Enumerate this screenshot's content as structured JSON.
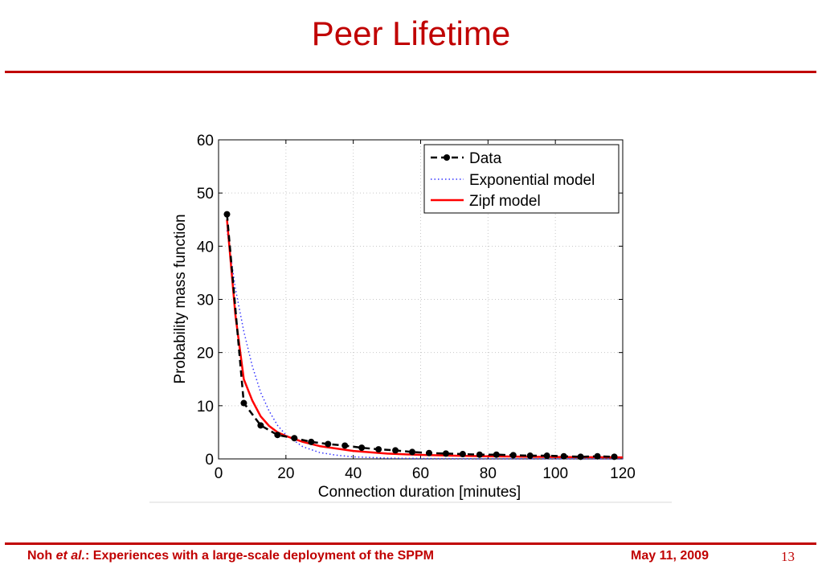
{
  "slide": {
    "title": "Peer Lifetime",
    "footer_author": "Noh",
    "footer_etal": "et al.",
    "footer_rest": ": Experiences with a large-scale deployment of the SPPM",
    "footer_date": "May 11, 2009",
    "page_number": "13"
  },
  "colors": {
    "accent": "#c00000",
    "data_series": "#000000",
    "exponential_series": "#3333ff",
    "zipf_series": "#ff0000"
  },
  "chart_data": {
    "type": "line",
    "title": "",
    "xlabel": "Connection duration [minutes]",
    "ylabel": "Probability mass function",
    "xlim": [
      0,
      120
    ],
    "ylim": [
      0,
      60
    ],
    "xticks": [
      0,
      20,
      40,
      60,
      80,
      100,
      120
    ],
    "yticks": [
      0,
      10,
      20,
      30,
      40,
      50,
      60
    ],
    "grid": true,
    "legend_position": "top-right",
    "series": [
      {
        "name": "Data",
        "style": "dashed-dots",
        "x": [
          2.5,
          7.5,
          12.5,
          17.5,
          22.5,
          27.5,
          32.5,
          37.5,
          42.5,
          47.5,
          52.5,
          57.5,
          62.5,
          67.5,
          72.5,
          77.5,
          82.5,
          87.5,
          92.5,
          97.5,
          102.5,
          107.5,
          112.5,
          117.5
        ],
        "y": [
          46,
          10.5,
          6.3,
          4.5,
          3.9,
          3.2,
          2.8,
          2.5,
          2.1,
          1.8,
          1.6,
          1.3,
          1.1,
          1.0,
          0.9,
          0.8,
          0.8,
          0.7,
          0.6,
          0.6,
          0.5,
          0.4,
          0.5,
          0.4
        ]
      },
      {
        "name": "Exponential model",
        "style": "dotted",
        "x": [
          2.5,
          5,
          7.5,
          10,
          12.5,
          15,
          17.5,
          20,
          25,
          30,
          35,
          40,
          50,
          60,
          80,
          100,
          120
        ],
        "y": [
          43,
          32,
          24,
          17.5,
          12.5,
          9,
          6.3,
          4.5,
          2.3,
          1.2,
          0.7,
          0.4,
          0.15,
          0.07,
          0.02,
          0.01,
          0.0
        ]
      },
      {
        "name": "Zipf model",
        "style": "solid",
        "x": [
          2.5,
          5,
          7.5,
          10,
          12.5,
          15,
          17.5,
          20,
          25,
          30,
          40,
          50,
          60,
          70,
          80,
          90,
          100,
          110,
          120
        ],
        "y": [
          45,
          27,
          15,
          11,
          8,
          6.2,
          5,
          4.3,
          3.2,
          2.4,
          1.5,
          1.0,
          0.75,
          0.6,
          0.5,
          0.42,
          0.36,
          0.32,
          0.28
        ]
      }
    ]
  }
}
